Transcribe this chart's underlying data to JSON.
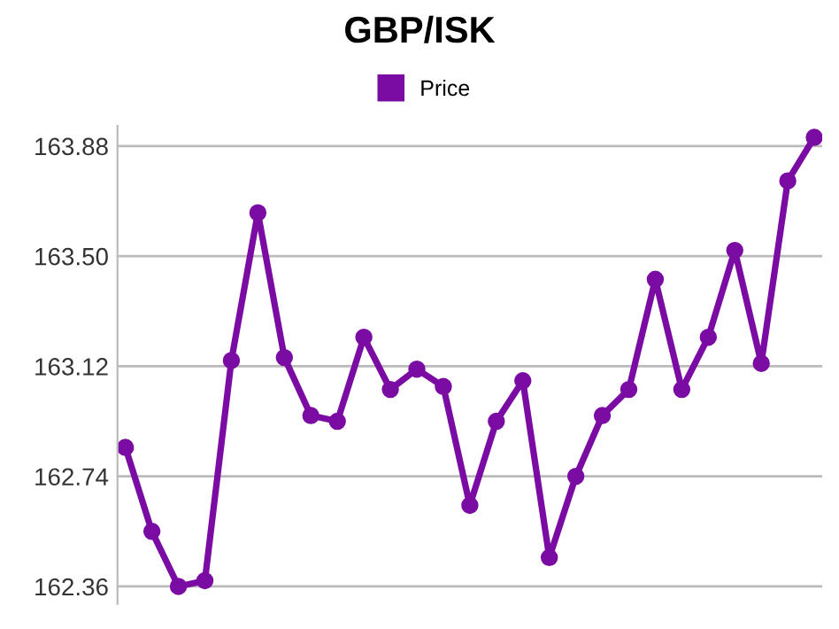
{
  "chart_data": {
    "type": "line",
    "title": "GBP/ISK",
    "categories": [
      null,
      null,
      null,
      null,
      null,
      null,
      null,
      null,
      null,
      null,
      null,
      null,
      null,
      null,
      null,
      null,
      null,
      null,
      null,
      null,
      null,
      null,
      null,
      null,
      null,
      null,
      null
    ],
    "series": [
      {
        "name": "Price",
        "color": "#7b0ca3",
        "values": [
          162.84,
          162.55,
          162.36,
          162.38,
          163.14,
          163.65,
          163.15,
          162.95,
          162.93,
          163.22,
          163.04,
          163.11,
          163.05,
          162.64,
          162.93,
          163.07,
          162.46,
          162.74,
          162.95,
          163.04,
          163.42,
          163.04,
          163.22,
          163.52,
          163.13,
          163.76,
          163.91
        ]
      }
    ],
    "ylim": [
      162.3,
      163.95
    ],
    "yticks": [
      {
        "value": 162.36,
        "label": "162.36"
      },
      {
        "value": 162.74,
        "label": "162.74"
      },
      {
        "value": 163.12,
        "label": "163.12"
      },
      {
        "value": 163.5,
        "label": "163.50"
      },
      {
        "value": 163.88,
        "label": "163.88"
      }
    ],
    "grid": "y",
    "legend": "top",
    "marker": "circle",
    "line_style": "solid"
  }
}
